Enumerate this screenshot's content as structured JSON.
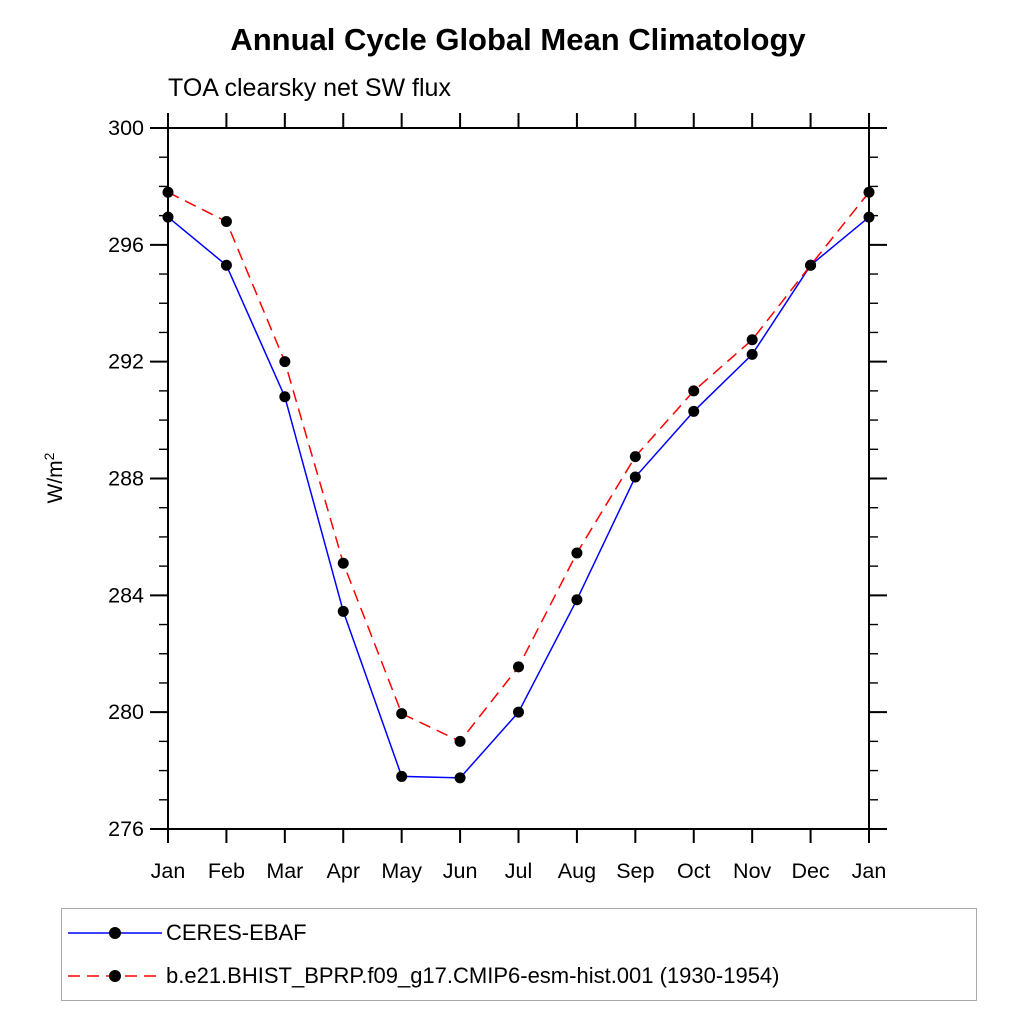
{
  "chart_data": {
    "type": "line",
    "title": "Annual Cycle Global Mean Climatology",
    "subtitle": "TOA clearsky net SW flux",
    "ylabel_base": "W/m",
    "ylabel_exp": "2",
    "x_categories": [
      "Jan",
      "Feb",
      "Mar",
      "Apr",
      "May",
      "Jun",
      "Jul",
      "Aug",
      "Sep",
      "Oct",
      "Nov",
      "Dec",
      "Jan"
    ],
    "ylim": [
      276,
      300
    ],
    "ytick_major": [
      276,
      280,
      284,
      288,
      292,
      296,
      300
    ],
    "ytick_minor_step": 1,
    "grid": "off",
    "legend_position": "bottom-left-box",
    "axis_color": "#000000",
    "marker_color": "#000000",
    "legend_border_color": "#a9a9a9",
    "series": [
      {
        "name": "CERES-EBAF",
        "color": "#0000ff",
        "line_style": "solid",
        "marker": "filled-circle",
        "values": [
          296.95,
          295.3,
          290.8,
          283.45,
          277.8,
          277.75,
          280.0,
          283.85,
          288.05,
          290.3,
          292.25,
          295.3,
          296.95
        ]
      },
      {
        "name": "b.e21.BHIST_BPRP.f09_g17.CMIP6-esm-hist.001 (1930-1954)",
        "color": "#ff0000",
        "line_style": "dashed",
        "marker": "filled-circle",
        "values": [
          297.8,
          296.8,
          292.0,
          285.1,
          279.95,
          279.0,
          281.55,
          285.45,
          288.75,
          291.0,
          292.75,
          295.3,
          297.8
        ]
      }
    ]
  }
}
